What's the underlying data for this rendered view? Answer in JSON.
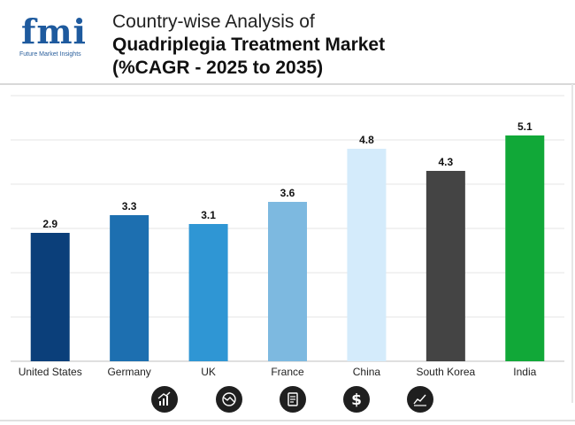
{
  "header": {
    "logo_text": "fmi",
    "logo_subtext": "Future Market Insights",
    "title_line1": "Country-wise Analysis of",
    "title_line2": "Quadriplegia Treatment Market",
    "title_line3": "(%CAGR - 2025 to 2035)"
  },
  "chart_data": {
    "type": "bar",
    "title": "Country-wise Analysis of Quadriplegia Treatment Market (%CAGR - 2025 to 2035)",
    "categories": [
      "United States",
      "Germany",
      "UK",
      "France",
      "China",
      "South Korea",
      "India"
    ],
    "values": [
      2.9,
      3.3,
      3.1,
      3.6,
      4.8,
      4.3,
      5.1
    ],
    "value_labels": [
      "2.9",
      "3.3",
      "3.1",
      "3.6",
      "4.8",
      "4.3",
      "5.1"
    ],
    "colors": [
      "#0b3f7a",
      "#1d6fb0",
      "#2f96d4",
      "#7db9e0",
      "#d4ebfb",
      "#444444",
      "#11a838"
    ],
    "xlabel": "",
    "ylabel": "",
    "ylim": [
      0,
      6
    ],
    "grid": true
  },
  "footer_icons": [
    "bar-growth-icon",
    "decline-chart-icon",
    "document-icon",
    "dollar-icon",
    "trend-line-icon"
  ]
}
